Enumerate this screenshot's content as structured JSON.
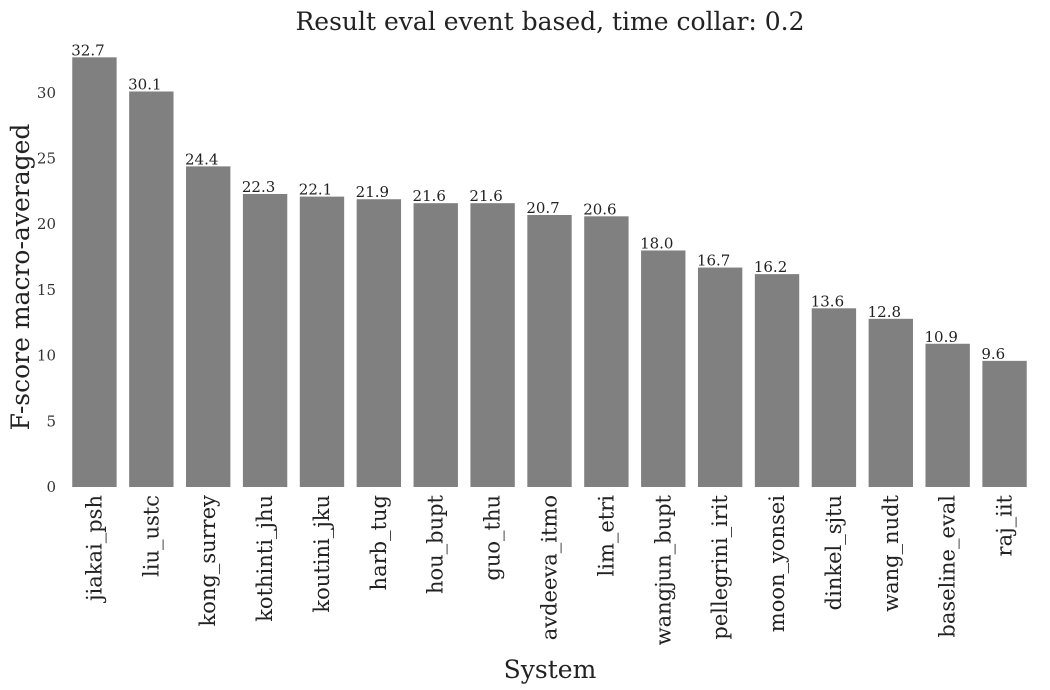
{
  "chart_data": {
    "type": "bar",
    "title": "Result eval event based, time collar: 0.2",
    "xlabel": "System",
    "ylabel": "F-score macro-averaged",
    "ylim": [
      0,
      33
    ],
    "yticks": [
      0,
      5,
      10,
      15,
      20,
      25,
      30
    ],
    "grid": false,
    "bar_color": "#808080",
    "categories": [
      "jiakai_psh",
      "liu_ustc",
      "kong_surrey",
      "kothinti_jhu",
      "koutini_jku",
      "harb_tug",
      "hou_bupt",
      "guo_thu",
      "avdeeva_itmo",
      "lim_etri",
      "wangjun_bupt",
      "pellegrini_irit",
      "moon_yonsei",
      "dinkel_sjtu",
      "wang_nudt",
      "baseline_eval",
      "raj_iit"
    ],
    "values": [
      32.7,
      30.1,
      24.4,
      22.3,
      22.1,
      21.9,
      21.6,
      21.6,
      20.7,
      20.6,
      18.0,
      16.7,
      16.2,
      13.6,
      12.8,
      10.9,
      9.6
    ],
    "value_labels": [
      "32.7",
      "30.1",
      "24.4",
      "22.3",
      "22.1",
      "21.9",
      "21.6",
      "21.6",
      "20.7",
      "20.6",
      "18.0",
      "16.7",
      "16.2",
      "13.6",
      "12.8",
      "10.9",
      "9.6"
    ]
  }
}
